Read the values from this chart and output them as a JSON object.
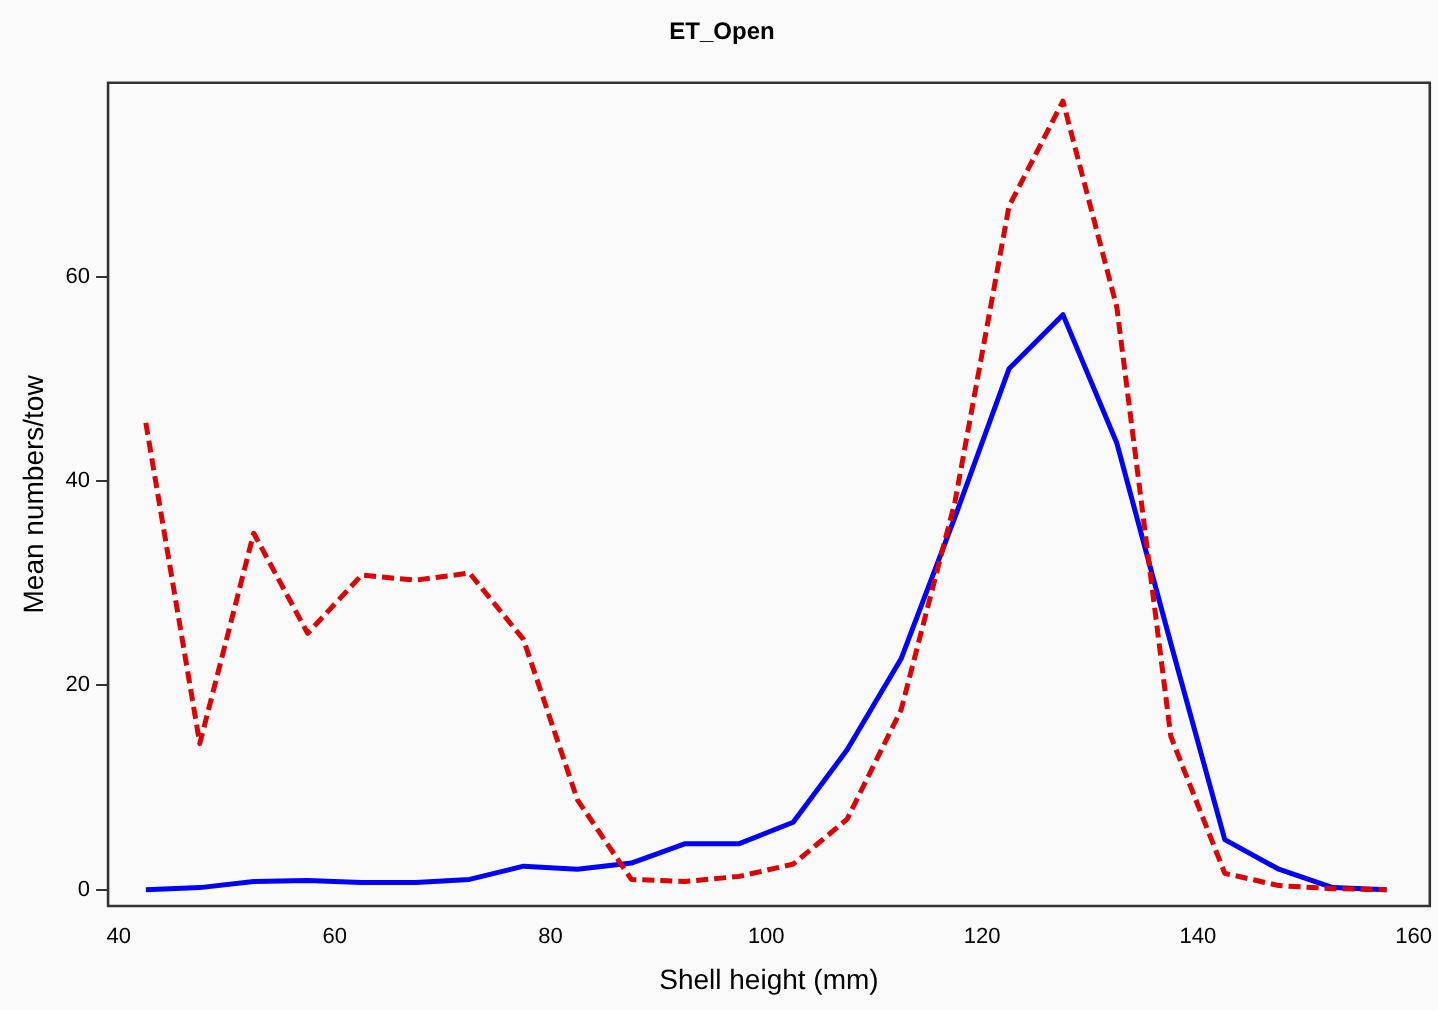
{
  "chart_data": {
    "type": "line",
    "title": "ET_Open",
    "xlabel": "Shell height (mm)",
    "ylabel": "Mean numbers/tow",
    "xlim": [
      39,
      161.5
    ],
    "xticks": [
      40,
      60,
      80,
      100,
      120,
      140,
      160
    ],
    "ylim": [
      -1.6,
      79
    ],
    "yticks": [
      0,
      20,
      40,
      60
    ],
    "grid": false,
    "legend": false,
    "marker": "none",
    "x": [
      42.5,
      47.5,
      52.5,
      57.5,
      62.5,
      67.5,
      72.5,
      77.5,
      82.5,
      87.5,
      92.5,
      97.5,
      102.5,
      107.5,
      112.5,
      117.5,
      122.5,
      127.5,
      132.5,
      137.5,
      142.5,
      147.5,
      152.5,
      157.5
    ],
    "series": [
      {
        "color": "#0000ff",
        "line_style": "solid",
        "values": [
          0,
          0.2,
          0.8,
          0.9,
          0.7,
          0.7,
          1.0,
          2.3,
          2.0,
          2.6,
          4.5,
          4.5,
          6.6,
          13.7,
          22.6,
          36.5,
          51,
          56.3,
          43.7,
          24.1,
          4.9,
          2,
          0.2,
          0
        ]
      },
      {
        "color": "#dd0000",
        "line_style": "dashed",
        "values": [
          45.7,
          14.3,
          34.9,
          25.1,
          30.8,
          30.3,
          31,
          24.5,
          8.8,
          1.0,
          0.8,
          1.3,
          2.5,
          6.9,
          17.6,
          38,
          66.9,
          77.2,
          57,
          15,
          1.6,
          0.4,
          0.1,
          0
        ]
      }
    ]
  }
}
